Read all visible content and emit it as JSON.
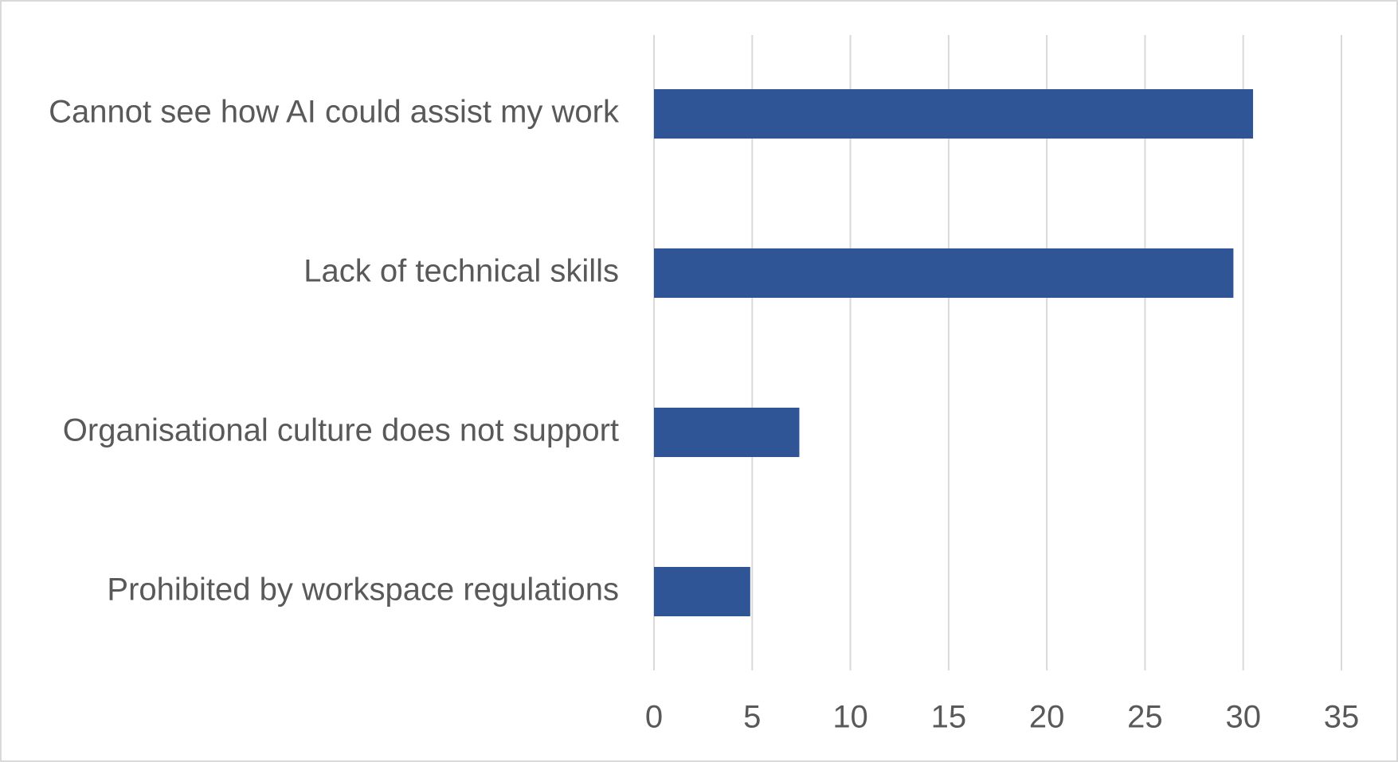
{
  "chart_data": {
    "type": "bar",
    "orientation": "horizontal",
    "categories": [
      "Cannot see how AI could assist my work",
      "Lack of technical skills",
      "Organisational culture does not support",
      "Prohibited by workspace regulations"
    ],
    "values": [
      30.5,
      29.5,
      7.4,
      4.9
    ],
    "xlim": [
      0,
      35
    ],
    "x_ticks": [
      0,
      5,
      10,
      15,
      20,
      25,
      30,
      35
    ],
    "x_tick_labels": [
      "0",
      "5",
      "10",
      "15",
      "20",
      "25",
      "30",
      "35"
    ],
    "title": "",
    "xlabel": "",
    "ylabel": "",
    "grid": "vertical",
    "legend": "none",
    "colors": {
      "bar": "#2f5597",
      "grid": "#d9d9d9",
      "text": "#595959",
      "border": "#d9d9d9"
    }
  }
}
